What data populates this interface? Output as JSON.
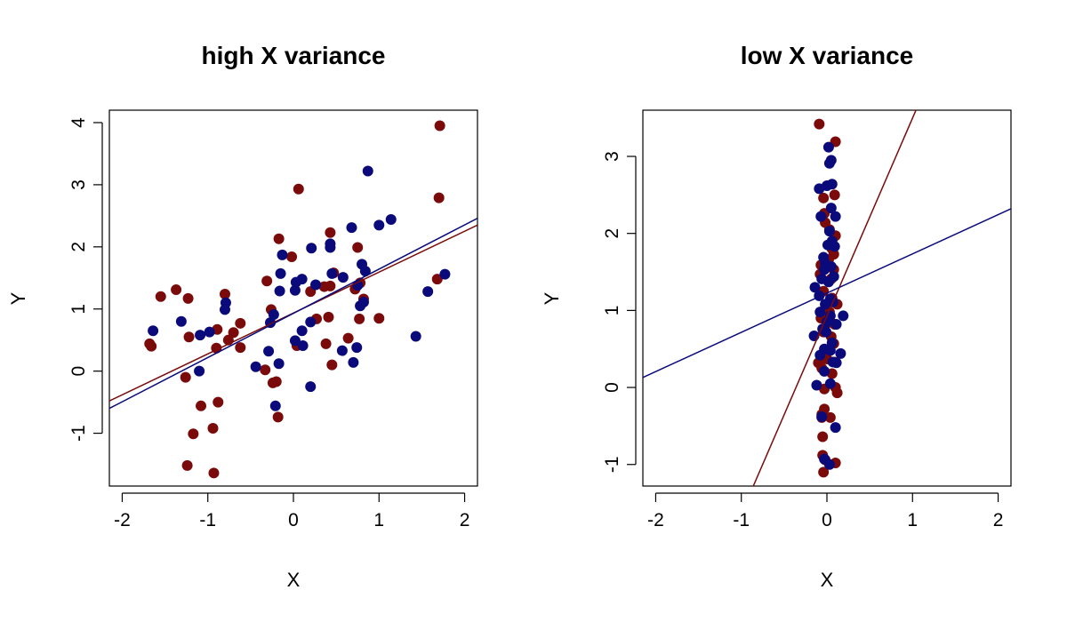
{
  "chart_data": [
    {
      "type": "scatter",
      "title": "high X variance",
      "xlabel": "X",
      "ylabel": "Y",
      "xlim": [
        -2.15,
        2.15
      ],
      "ylim": [
        -1.85,
        4.2
      ],
      "x_ticks": [
        -2,
        -1,
        0,
        1,
        2
      ],
      "y_ticks": [
        -1,
        0,
        1,
        2,
        3,
        4
      ],
      "x_tick_labels": [
        "-2",
        "-1",
        "0",
        "1",
        "2"
      ],
      "y_tick_labels": [
        "-1",
        "0",
        "1",
        "2",
        "3",
        "4"
      ],
      "series": [
        {
          "color": "#7b0a0a",
          "points": [
            [
              1.71,
              3.95
            ],
            [
              0.06,
              2.93
            ],
            [
              1.7,
              2.79
            ],
            [
              -0.17,
              2.13
            ],
            [
              0.43,
              2.23
            ],
            [
              0.75,
              1.99
            ],
            [
              -0.02,
              1.84
            ],
            [
              0.47,
              1.58
            ],
            [
              0.78,
              1.42
            ],
            [
              -1.55,
              1.2
            ],
            [
              -1.37,
              1.31
            ],
            [
              -1.23,
              1.17
            ],
            [
              -0.8,
              1.24
            ],
            [
              -0.31,
              1.45
            ],
            [
              0.2,
              1.28
            ],
            [
              0.36,
              1.36
            ],
            [
              0.43,
              1.37
            ],
            [
              0.72,
              1.32
            ],
            [
              0.82,
              1.16
            ],
            [
              1.68,
              1.48
            ],
            [
              -0.26,
              0.99
            ],
            [
              0.27,
              0.84
            ],
            [
              0.41,
              0.87
            ],
            [
              0.77,
              0.84
            ],
            [
              1.0,
              0.85
            ],
            [
              -1.22,
              0.55
            ],
            [
              -0.89,
              0.67
            ],
            [
              -0.7,
              0.62
            ],
            [
              -0.76,
              0.5
            ],
            [
              -0.62,
              0.77
            ],
            [
              -1.68,
              0.44
            ],
            [
              -1.66,
              0.4
            ],
            [
              -0.9,
              0.37
            ],
            [
              -0.62,
              0.38
            ],
            [
              0.64,
              0.53
            ],
            [
              0.38,
              0.44
            ],
            [
              0.04,
              0.41
            ],
            [
              -0.33,
              0.02
            ],
            [
              0.45,
              0.1
            ],
            [
              -1.26,
              -0.1
            ],
            [
              -0.24,
              -0.19
            ],
            [
              -0.2,
              -0.17
            ],
            [
              -1.08,
              -0.56
            ],
            [
              -0.88,
              -0.5
            ],
            [
              -0.18,
              -0.74
            ],
            [
              -1.17,
              -1.01
            ],
            [
              -0.94,
              -0.92
            ],
            [
              -1.24,
              -1.52
            ],
            [
              -0.93,
              -1.64
            ]
          ]
        },
        {
          "color": "#0a0a7b",
          "points": [
            [
              0.87,
              3.22
            ],
            [
              1.14,
              2.44
            ],
            [
              1.0,
              2.35
            ],
            [
              0.68,
              2.31
            ],
            [
              0.43,
              2.05
            ],
            [
              0.43,
              1.99
            ],
            [
              0.21,
              1.98
            ],
            [
              -0.13,
              1.87
            ],
            [
              0.8,
              1.72
            ],
            [
              0.84,
              1.61
            ],
            [
              0.45,
              1.57
            ],
            [
              -0.15,
              1.57
            ],
            [
              0.03,
              1.43
            ],
            [
              0.1,
              1.48
            ],
            [
              0.58,
              1.51
            ],
            [
              0.26,
              1.39
            ],
            [
              0.75,
              1.38
            ],
            [
              -0.16,
              1.29
            ],
            [
              0.02,
              1.3
            ],
            [
              1.57,
              1.28
            ],
            [
              1.77,
              1.56
            ],
            [
              -0.79,
              1.1
            ],
            [
              -0.8,
              0.99
            ],
            [
              0.78,
              1.05
            ],
            [
              0.82,
              1.11
            ],
            [
              -0.23,
              0.91
            ],
            [
              -0.27,
              0.78
            ],
            [
              0.2,
              0.79
            ],
            [
              -1.64,
              0.65
            ],
            [
              -1.31,
              0.8
            ],
            [
              -1.09,
              0.58
            ],
            [
              -0.98,
              0.63
            ],
            [
              0.1,
              0.65
            ],
            [
              0.02,
              0.49
            ],
            [
              0.11,
              0.41
            ],
            [
              0.57,
              0.33
            ],
            [
              0.74,
              0.38
            ],
            [
              -0.29,
              0.32
            ],
            [
              -0.44,
              0.07
            ],
            [
              -0.17,
              0.12
            ],
            [
              0.7,
              0.14
            ],
            [
              1.43,
              0.56
            ],
            [
              -1.1,
              0.0
            ],
            [
              0.2,
              -0.25
            ],
            [
              -0.21,
              -0.56
            ]
          ]
        }
      ],
      "lines": [
        {
          "color": "#7b0a0a",
          "p1": [
            -2.15,
            -0.48
          ],
          "p2": [
            2.15,
            2.35
          ]
        },
        {
          "color": "#0a0a7b",
          "p1": [
            -2.15,
            -0.6
          ],
          "p2": [
            2.15,
            2.46
          ]
        }
      ]
    },
    {
      "type": "scatter",
      "title": "low X variance",
      "xlabel": "X",
      "ylabel": "Y",
      "xlim": [
        -2.15,
        2.15
      ],
      "ylim": [
        -1.28,
        3.6
      ],
      "x_ticks": [
        -2,
        -1,
        0,
        1,
        2
      ],
      "y_ticks": [
        -1,
        0,
        1,
        2,
        3
      ],
      "x_tick_labels": [
        "-2",
        "-1",
        "0",
        "1",
        "2"
      ],
      "y_tick_labels": [
        "-1",
        "0",
        "1",
        "2",
        "3"
      ],
      "series": [
        {
          "color": "#7b0a0a",
          "points": [
            [
              -0.09,
              3.42
            ],
            [
              0.1,
              3.19
            ],
            [
              -0.04,
              2.46
            ],
            [
              0.09,
              2.5
            ],
            [
              -0.03,
              2.26
            ],
            [
              -0.02,
              2.14
            ],
            [
              0.03,
              2.05
            ],
            [
              0.1,
              1.97
            ],
            [
              0.06,
              1.8
            ],
            [
              0.08,
              1.73
            ],
            [
              -0.07,
              1.59
            ],
            [
              0.02,
              1.66
            ],
            [
              0.08,
              1.53
            ],
            [
              -0.08,
              1.47
            ],
            [
              0.05,
              1.41
            ],
            [
              -0.04,
              1.25
            ],
            [
              0.06,
              1.16
            ],
            [
              0.12,
              1.08
            ],
            [
              0.03,
              0.98
            ],
            [
              -0.07,
              0.9
            ],
            [
              0.01,
              0.84
            ],
            [
              0.09,
              0.82
            ],
            [
              -0.04,
              0.72
            ],
            [
              0.05,
              0.66
            ],
            [
              0.08,
              0.57
            ],
            [
              -0.05,
              0.43
            ],
            [
              0.0,
              0.37
            ],
            [
              0.09,
              0.33
            ],
            [
              -0.1,
              0.32
            ],
            [
              -0.06,
              0.25
            ],
            [
              0.06,
              0.18
            ],
            [
              0.1,
              0.0
            ],
            [
              -0.03,
              -0.02
            ],
            [
              0.12,
              -0.07
            ],
            [
              -0.03,
              -0.28
            ],
            [
              -0.06,
              -0.35
            ],
            [
              -0.06,
              -0.39
            ],
            [
              0.04,
              -0.39
            ],
            [
              -0.05,
              -0.64
            ],
            [
              -0.05,
              -0.88
            ],
            [
              -0.02,
              -0.94
            ],
            [
              0.1,
              -0.98
            ],
            [
              -0.04,
              -1.1
            ]
          ]
        },
        {
          "color": "#0a0a7b",
          "points": [
            [
              0.02,
              3.12
            ],
            [
              0.05,
              2.95
            ],
            [
              0.03,
              2.91
            ],
            [
              -0.09,
              2.58
            ],
            [
              0.0,
              2.62
            ],
            [
              0.06,
              2.64
            ],
            [
              -0.07,
              2.22
            ],
            [
              0.05,
              2.33
            ],
            [
              0.1,
              2.22
            ],
            [
              0.03,
              2.03
            ],
            [
              0.06,
              1.9
            ],
            [
              0.01,
              1.85
            ],
            [
              0.09,
              1.83
            ],
            [
              -0.04,
              1.69
            ],
            [
              -0.02,
              1.61
            ],
            [
              0.05,
              1.57
            ],
            [
              -0.03,
              1.53
            ],
            [
              0.08,
              1.44
            ],
            [
              -0.06,
              1.41
            ],
            [
              0.02,
              1.37
            ],
            [
              -0.14,
              1.3
            ],
            [
              -0.09,
              1.19
            ],
            [
              0.04,
              1.15
            ],
            [
              0.07,
              1.11
            ],
            [
              -0.02,
              1.08
            ],
            [
              -0.08,
              0.98
            ],
            [
              0.04,
              0.93
            ],
            [
              0.19,
              0.93
            ],
            [
              0.0,
              0.85
            ],
            [
              0.11,
              0.82
            ],
            [
              -0.05,
              0.76
            ],
            [
              -0.01,
              0.72
            ],
            [
              -0.15,
              0.67
            ],
            [
              0.06,
              0.58
            ],
            [
              -0.03,
              0.5
            ],
            [
              0.04,
              0.48
            ],
            [
              0.16,
              0.44
            ],
            [
              -0.08,
              0.42
            ],
            [
              0.07,
              0.33
            ],
            [
              0.11,
              0.32
            ],
            [
              -0.03,
              0.21
            ],
            [
              0.04,
              0.05
            ],
            [
              -0.12,
              0.03
            ],
            [
              -0.06,
              -0.38
            ],
            [
              0.1,
              -0.52
            ],
            [
              -0.03,
              -0.93
            ],
            [
              0.03,
              -1.0
            ]
          ]
        }
      ],
      "lines": [
        {
          "color": "#7b0a0a",
          "p1": [
            -0.86,
            -1.28
          ],
          "p2": [
            1.04,
            3.6
          ]
        },
        {
          "color": "#0a0a7b",
          "p1": [
            -2.15,
            0.13
          ],
          "p2": [
            2.15,
            2.32
          ]
        }
      ]
    }
  ]
}
